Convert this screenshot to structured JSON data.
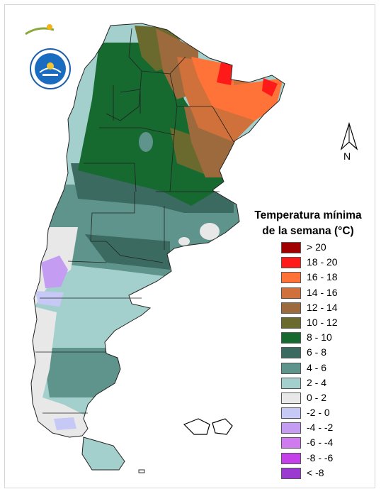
{
  "legend": {
    "title_line1": "Temperatura mínima",
    "title_line2": "de la semana (°C)",
    "items": [
      {
        "label": "> 20",
        "color": "#a00000"
      },
      {
        "label": "18 - 20",
        "color": "#ff1a1a"
      },
      {
        "label": "16 - 18",
        "color": "#ff7338"
      },
      {
        "label": "14 - 16",
        "color": "#d0703a"
      },
      {
        "label": "12 - 14",
        "color": "#9c6a3c"
      },
      {
        "label": "10 - 12",
        "color": "#6b6a2e"
      },
      {
        "label": "8 - 10",
        "color": "#16692f"
      },
      {
        "label": "6 - 8",
        "color": "#3a6a60"
      },
      {
        "label": "4 - 6",
        "color": "#5f948c"
      },
      {
        "label": "2 - 4",
        "color": "#a3d0cc"
      },
      {
        "label": "0 - 2",
        "color": "#e8e8e8"
      },
      {
        "label": "-2 - 0",
        "color": "#c6c8f6"
      },
      {
        "label": "-4 - -2",
        "color": "#c49cf2"
      },
      {
        "label": "-6 - -4",
        "color": "#d07af0"
      },
      {
        "label": "-8 - -6",
        "color": "#c440e8"
      },
      {
        "label": "< -8",
        "color": "#9a3ad0"
      }
    ]
  },
  "north_arrow": {
    "label": "N"
  },
  "logos": {
    "ora": "ORA",
    "seal": "SERVICIO METEOROLÓGICO NACIONAL ARGENTINA"
  }
}
